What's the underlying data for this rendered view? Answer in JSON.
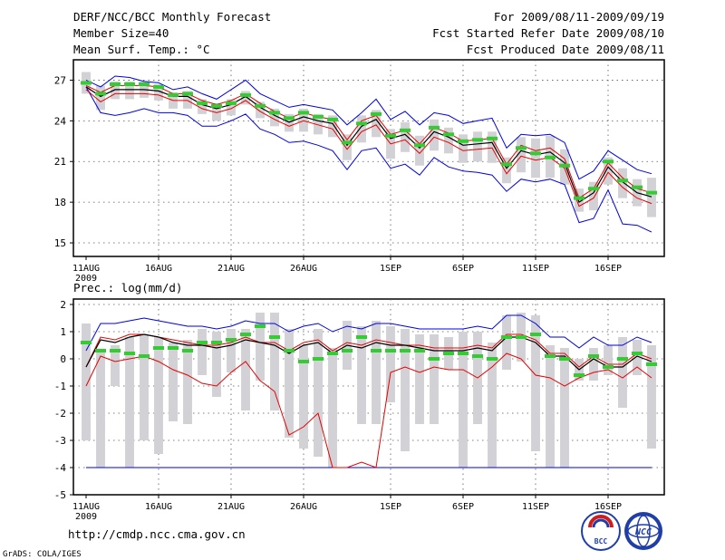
{
  "header": {
    "title": "DERF/NCC/BCC Monthly Forecast",
    "member_size": "Member Size=40",
    "variable": "Mean Surf. Temp.: °C",
    "period": "For 2009/08/11-2009/09/19",
    "refer_date": "Fcst Started Refer Date 2009/08/10",
    "produced_date": "Fcst Produced Date 2009/08/11"
  },
  "footer": {
    "url": "http://cmdp.ncc.cma.gov.cn",
    "credit": "GrADS: COLA/IGES",
    "logo_bcc": "BCC",
    "logo_ncc": "NCC"
  },
  "colors": {
    "ensemble_mean": "#000000",
    "upper_bound": "#0000e6",
    "lower_bound": "#0000e6",
    "spread_upper": "#e60000",
    "spread_lower": "#e60000",
    "control": "#33cc33",
    "box": "#d2d2d6"
  },
  "chart_data": [
    {
      "type": "line",
      "title": "Mean Surf. Temp.: °C",
      "ylim": [
        14,
        28.5
      ],
      "yticks": [
        15,
        18,
        21,
        24,
        27
      ],
      "x_tick_labels": [
        "11AUG",
        "16AUG",
        "21AUG",
        "26AUG",
        "1SEP",
        "6SEP",
        "11SEP",
        "16SEP"
      ],
      "x_tick_days": [
        1,
        6,
        11,
        16,
        22,
        27,
        32,
        37
      ],
      "x_year_label": "2009",
      "days": 40,
      "series": [
        {
          "name": "ensemble mean",
          "values": [
            26.5,
            25.8,
            26.3,
            26.3,
            26.3,
            26.2,
            25.8,
            25.8,
            25.2,
            24.9,
            25.2,
            25.8,
            25.0,
            24.4,
            23.9,
            24.3,
            24.0,
            23.8,
            22.2,
            23.6,
            24.1,
            22.7,
            23.0,
            22.0,
            23.2,
            22.8,
            22.2,
            22.3,
            22.4,
            20.5,
            21.8,
            21.5,
            21.7,
            20.9,
            18.0,
            18.7,
            20.6,
            19.5,
            18.7,
            18.4
          ]
        },
        {
          "name": "maximum",
          "values": [
            27.0,
            26.5,
            27.3,
            27.2,
            26.9,
            26.8,
            26.3,
            26.5,
            26.0,
            25.6,
            26.3,
            27.0,
            26.0,
            25.5,
            25.0,
            25.2,
            25.0,
            24.8,
            23.7,
            24.6,
            25.6,
            24.1,
            24.7,
            23.7,
            24.6,
            24.4,
            23.8,
            24.0,
            24.2,
            22.0,
            23.0,
            22.9,
            23.0,
            22.4,
            19.7,
            20.3,
            21.8,
            21.1,
            20.4,
            20.1
          ]
        },
        {
          "name": "minimum",
          "values": [
            26.5,
            24.6,
            24.4,
            24.6,
            24.9,
            24.6,
            24.6,
            24.4,
            23.6,
            23.6,
            24.0,
            24.5,
            23.4,
            23.0,
            22.4,
            22.5,
            22.2,
            21.8,
            20.4,
            21.8,
            22.0,
            20.5,
            20.8,
            20.0,
            21.3,
            20.6,
            20.3,
            20.2,
            20.0,
            18.8,
            19.7,
            19.5,
            19.7,
            19.3,
            16.5,
            16.8,
            18.9,
            16.4,
            16.3,
            15.8
          ]
        },
        {
          "name": "upper spread",
          "values": [
            26.6,
            26.1,
            26.6,
            26.6,
            26.6,
            26.5,
            26.0,
            26.0,
            25.5,
            25.2,
            25.5,
            26.0,
            25.3,
            24.7,
            24.2,
            24.6,
            24.3,
            24.1,
            22.6,
            24.0,
            24.4,
            23.0,
            23.3,
            22.3,
            23.5,
            23.1,
            22.5,
            22.6,
            22.7,
            20.8,
            22.2,
            21.8,
            22.0,
            21.2,
            18.3,
            19.0,
            20.9,
            19.8,
            19.0,
            18.7
          ]
        },
        {
          "name": "lower spread",
          "values": [
            26.3,
            25.4,
            26.0,
            26.0,
            26.0,
            25.9,
            25.5,
            25.5,
            24.9,
            24.6,
            24.9,
            25.5,
            24.7,
            24.1,
            23.6,
            24.0,
            23.7,
            23.4,
            21.9,
            23.2,
            23.7,
            22.3,
            22.6,
            21.6,
            22.8,
            22.4,
            21.8,
            21.9,
            22.0,
            20.1,
            21.4,
            21.1,
            21.3,
            20.5,
            17.7,
            18.3,
            20.2,
            19.1,
            18.3,
            17.9
          ]
        },
        {
          "name": "control (green dash)",
          "values": [
            26.8,
            26.0,
            26.7,
            26.7,
            26.7,
            26.5,
            25.9,
            26.0,
            25.3,
            25.1,
            25.3,
            25.9,
            25.1,
            24.6,
            24.2,
            24.6,
            24.3,
            24.1,
            22.4,
            23.8,
            24.5,
            22.9,
            23.3,
            22.2,
            23.5,
            23.0,
            22.5,
            22.6,
            22.7,
            20.8,
            22.0,
            21.6,
            21.3,
            20.7,
            18.3,
            19.0,
            21.0,
            19.6,
            19.1,
            18.7
          ]
        },
        {
          "name": "box high",
          "values": [
            27.6,
            26.6,
            26.9,
            26.9,
            26.9,
            26.7,
            26.1,
            26.2,
            25.6,
            25.3,
            25.6,
            26.2,
            25.4,
            24.9,
            24.5,
            24.9,
            24.5,
            24.4,
            23.0,
            24.4,
            24.8,
            23.4,
            23.9,
            22.9,
            24.1,
            23.5,
            23.0,
            23.2,
            23.2,
            21.3,
            22.8,
            22.7,
            22.9,
            21.9,
            19.0,
            19.5,
            21.3,
            20.5,
            19.7,
            19.8
          ]
        },
        {
          "name": "box low",
          "values": [
            26.0,
            24.8,
            25.6,
            25.6,
            25.7,
            25.5,
            24.9,
            24.9,
            24.5,
            24.0,
            24.4,
            25.2,
            24.2,
            23.6,
            23.2,
            23.2,
            23.0,
            22.8,
            21.1,
            22.4,
            22.8,
            21.2,
            21.7,
            20.7,
            21.8,
            21.6,
            20.9,
            21.0,
            20.9,
            19.4,
            20.2,
            19.8,
            19.8,
            19.3,
            17.3,
            17.4,
            19.3,
            18.3,
            17.7,
            16.9
          ]
        }
      ]
    },
    {
      "type": "line",
      "title": "Prec.: log(mm/d)",
      "ylim": [
        -5,
        2.2
      ],
      "yticks": [
        -5,
        -4,
        -3,
        -2,
        -1,
        0,
        1,
        2
      ],
      "x_tick_labels": [
        "11AUG",
        "16AUG",
        "21AUG",
        "26AUG",
        "1SEP",
        "6SEP",
        "11SEP",
        "16SEP"
      ],
      "x_tick_days": [
        1,
        6,
        11,
        16,
        22,
        27,
        32,
        37
      ],
      "x_year_label": "2009",
      "days": 40,
      "series": [
        {
          "name": "ensemble mean",
          "values": [
            -0.3,
            0.7,
            0.6,
            0.8,
            0.9,
            0.8,
            0.6,
            0.5,
            0.5,
            0.4,
            0.5,
            0.7,
            0.6,
            0.5,
            0.2,
            0.5,
            0.6,
            0.2,
            0.5,
            0.4,
            0.6,
            0.5,
            0.5,
            0.4,
            0.3,
            0.3,
            0.3,
            0.4,
            0.3,
            0.8,
            0.8,
            0.6,
            0.1,
            0.1,
            -0.4,
            0.0,
            -0.3,
            -0.3,
            0.1,
            -0.1
          ]
        },
        {
          "name": "maximum",
          "values": [
            0.3,
            1.3,
            1.3,
            1.4,
            1.5,
            1.4,
            1.3,
            1.2,
            1.2,
            1.1,
            1.2,
            1.4,
            1.3,
            1.3,
            1.0,
            1.2,
            1.3,
            1.0,
            1.2,
            1.1,
            1.3,
            1.3,
            1.2,
            1.1,
            1.1,
            1.1,
            1.1,
            1.2,
            1.1,
            1.6,
            1.6,
            1.3,
            0.8,
            0.8,
            0.4,
            0.8,
            0.5,
            0.5,
            0.8,
            0.6
          ]
        },
        {
          "name": "minimum",
          "values": [
            -4,
            -4,
            -4,
            -4,
            -4,
            -4,
            -4,
            -4,
            -4,
            -4,
            -4,
            -4,
            -4,
            -4,
            -4,
            -4,
            -4,
            -4,
            -4,
            -4,
            -4,
            -4,
            -4,
            -4,
            -4,
            -4,
            -4,
            -4,
            -4,
            -4,
            -4,
            -4,
            -4,
            -4,
            -4,
            -4,
            -4,
            -4,
            -4,
            -4
          ]
        },
        {
          "name": "upper spread",
          "values": [
            -0.3,
            0.8,
            0.7,
            0.9,
            0.9,
            0.8,
            0.7,
            0.6,
            0.5,
            0.5,
            0.6,
            0.8,
            0.6,
            0.6,
            0.3,
            0.6,
            0.7,
            0.3,
            0.6,
            0.5,
            0.7,
            0.6,
            0.5,
            0.5,
            0.4,
            0.4,
            0.4,
            0.5,
            0.4,
            0.9,
            0.9,
            0.7,
            0.2,
            0.2,
            -0.3,
            0.1,
            -0.2,
            -0.2,
            0.2,
            0.0
          ]
        },
        {
          "name": "lower spread",
          "values": [
            -1.0,
            0.1,
            -0.1,
            0.0,
            0.1,
            -0.1,
            -0.4,
            -0.6,
            -0.9,
            -1.0,
            -0.5,
            -0.1,
            -0.8,
            -1.2,
            -2.8,
            -2.5,
            -2.0,
            -4.0,
            -4.0,
            -3.8,
            -4.0,
            -0.5,
            -0.3,
            -0.5,
            -0.3,
            -0.4,
            -0.4,
            -0.7,
            -0.3,
            0.2,
            0.0,
            -0.6,
            -0.7,
            -1.0,
            -0.7,
            -0.5,
            -0.4,
            -0.7,
            -0.3,
            -0.7
          ]
        },
        {
          "name": "control (green dash)",
          "values": [
            0.6,
            0.3,
            0.3,
            0.2,
            0.1,
            0.4,
            0.4,
            0.3,
            0.6,
            0.6,
            0.7,
            0.9,
            1.2,
            0.8,
            0.3,
            -0.1,
            0.0,
            0.2,
            0.3,
            0.8,
            0.3,
            0.3,
            0.3,
            0.3,
            0.0,
            0.2,
            0.2,
            0.1,
            0.0,
            0.8,
            0.8,
            0.9,
            0.1,
            0.0,
            -0.6,
            0.1,
            -0.3,
            0.0,
            0.2,
            -0.2
          ]
        },
        {
          "name": "box high",
          "values": [
            1.3,
            0.3,
            0.5,
            0.8,
            0.9,
            0.8,
            0.6,
            0.7,
            1.1,
            1.0,
            1.1,
            1.1,
            1.7,
            1.7,
            1.1,
            0.5,
            1.1,
            0.4,
            1.4,
            1.2,
            1.4,
            1.2,
            1.1,
            0.9,
            0.9,
            0.8,
            1.0,
            1.0,
            0.6,
            1.6,
            1.7,
            1.6,
            0.5,
            0.4,
            0.0,
            0.4,
            0.5,
            0.8,
            0.7,
            0.5
          ]
        },
        {
          "name": "box low",
          "values": [
            -3.0,
            -4.0,
            -1.0,
            -4.0,
            -3.0,
            -3.5,
            -2.3,
            -2.4,
            -0.6,
            -1.4,
            -0.5,
            -1.9,
            -0.8,
            -1.9,
            -2.9,
            -3.3,
            -3.6,
            -4.0,
            -0.4,
            -2.4,
            -2.4,
            -1.6,
            -3.4,
            -2.4,
            -2.4,
            -0.4,
            -4.0,
            -2.4,
            -4.0,
            -0.4,
            -0.1,
            -3.4,
            -4.0,
            -4.0,
            -0.8,
            -0.8,
            -0.6,
            -1.8,
            -0.6,
            -3.3
          ]
        }
      ]
    }
  ],
  "bottom_panel_label": "Prec.: log(mm/d)"
}
